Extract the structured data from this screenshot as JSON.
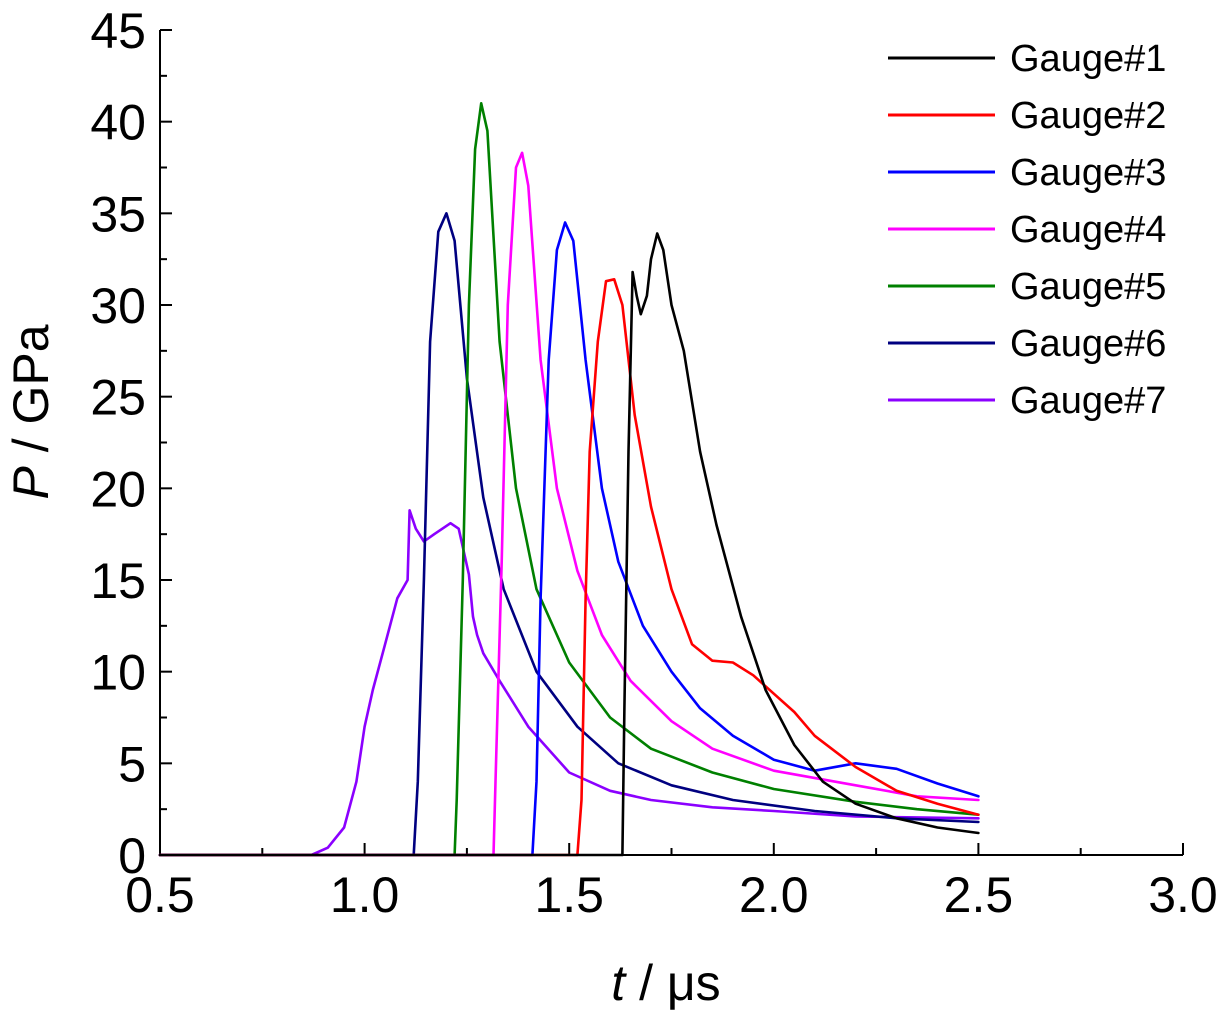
{
  "chart_data": {
    "type": "line",
    "title": "",
    "xlabel_var": "t",
    "xlabel_unit": " / μs",
    "ylabel_var": "P",
    "ylabel_unit": " / GPa",
    "xlim": [
      0.5,
      3.0
    ],
    "ylim": [
      0,
      45
    ],
    "x_ticks": [
      0.5,
      1.0,
      1.5,
      2.0,
      2.5,
      3.0
    ],
    "x_tick_labels": [
      "0.5",
      "1.0",
      "1.5",
      "2.0",
      "2.5",
      "3.0"
    ],
    "y_ticks": [
      0,
      5,
      10,
      15,
      20,
      25,
      30,
      35,
      40,
      45
    ],
    "y_tick_labels": [
      "0",
      "5",
      "10",
      "15",
      "20",
      "25",
      "30",
      "35",
      "40",
      "45"
    ],
    "grid": false,
    "legend_position": "top-right",
    "series": [
      {
        "name": "Gauge#1",
        "color": "#000000",
        "points": [
          [
            0.5,
            0
          ],
          [
            1.63,
            0
          ],
          [
            1.635,
            8
          ],
          [
            1.645,
            22
          ],
          [
            1.655,
            31.8
          ],
          [
            1.665,
            30.5
          ],
          [
            1.675,
            29.5
          ],
          [
            1.69,
            30.5
          ],
          [
            1.7,
            32.5
          ],
          [
            1.715,
            33.9
          ],
          [
            1.73,
            33
          ],
          [
            1.75,
            30
          ],
          [
            1.78,
            27.5
          ],
          [
            1.82,
            22
          ],
          [
            1.86,
            18
          ],
          [
            1.92,
            13
          ],
          [
            1.98,
            9
          ],
          [
            2.05,
            6
          ],
          [
            2.12,
            4
          ],
          [
            2.2,
            2.8
          ],
          [
            2.3,
            2.0
          ],
          [
            2.4,
            1.5
          ],
          [
            2.5,
            1.2
          ]
        ]
      },
      {
        "name": "Gauge#2",
        "color": "#ff0000",
        "points": [
          [
            0.5,
            0
          ],
          [
            1.52,
            0
          ],
          [
            1.53,
            3
          ],
          [
            1.54,
            14
          ],
          [
            1.55,
            22
          ],
          [
            1.57,
            28
          ],
          [
            1.59,
            31.3
          ],
          [
            1.61,
            31.4
          ],
          [
            1.63,
            30
          ],
          [
            1.66,
            24
          ],
          [
            1.7,
            19
          ],
          [
            1.75,
            14.5
          ],
          [
            1.8,
            11.5
          ],
          [
            1.85,
            10.6
          ],
          [
            1.9,
            10.5
          ],
          [
            1.95,
            9.8
          ],
          [
            2.0,
            8.8
          ],
          [
            2.05,
            7.8
          ],
          [
            2.1,
            6.5
          ],
          [
            2.2,
            4.8
          ],
          [
            2.3,
            3.5
          ],
          [
            2.4,
            2.8
          ],
          [
            2.5,
            2.2
          ]
        ]
      },
      {
        "name": "Gauge#3",
        "color": "#0000ff",
        "points": [
          [
            0.5,
            0
          ],
          [
            1.41,
            0
          ],
          [
            1.42,
            4
          ],
          [
            1.43,
            14
          ],
          [
            1.45,
            27
          ],
          [
            1.47,
            33
          ],
          [
            1.49,
            34.5
          ],
          [
            1.51,
            33.5
          ],
          [
            1.54,
            27
          ],
          [
            1.58,
            20
          ],
          [
            1.62,
            16
          ],
          [
            1.68,
            12.5
          ],
          [
            1.75,
            10
          ],
          [
            1.82,
            8
          ],
          [
            1.9,
            6.5
          ],
          [
            2.0,
            5.2
          ],
          [
            2.1,
            4.6
          ],
          [
            2.2,
            5.0
          ],
          [
            2.3,
            4.7
          ],
          [
            2.4,
            3.9
          ],
          [
            2.5,
            3.2
          ]
        ]
      },
      {
        "name": "Gauge#4",
        "color": "#ff00ff",
        "points": [
          [
            0.5,
            0
          ],
          [
            1.315,
            0
          ],
          [
            1.32,
            4
          ],
          [
            1.335,
            16
          ],
          [
            1.35,
            30
          ],
          [
            1.37,
            37.5
          ],
          [
            1.385,
            38.3
          ],
          [
            1.4,
            36.5
          ],
          [
            1.43,
            27
          ],
          [
            1.47,
            20
          ],
          [
            1.52,
            15.5
          ],
          [
            1.58,
            12
          ],
          [
            1.65,
            9.5
          ],
          [
            1.75,
            7.3
          ],
          [
            1.85,
            5.8
          ],
          [
            2.0,
            4.6
          ],
          [
            2.2,
            3.8
          ],
          [
            2.35,
            3.2
          ],
          [
            2.5,
            3.0
          ]
        ]
      },
      {
        "name": "Gauge#5",
        "color": "#008000",
        "points": [
          [
            0.5,
            0
          ],
          [
            1.22,
            0
          ],
          [
            1.225,
            3
          ],
          [
            1.24,
            15
          ],
          [
            1.255,
            30
          ],
          [
            1.27,
            38.5
          ],
          [
            1.285,
            41.0
          ],
          [
            1.3,
            39.5
          ],
          [
            1.33,
            28
          ],
          [
            1.37,
            20
          ],
          [
            1.42,
            14.5
          ],
          [
            1.5,
            10.5
          ],
          [
            1.6,
            7.5
          ],
          [
            1.7,
            5.8
          ],
          [
            1.85,
            4.5
          ],
          [
            2.0,
            3.6
          ],
          [
            2.2,
            2.9
          ],
          [
            2.35,
            2.5
          ],
          [
            2.5,
            2.2
          ]
        ]
      },
      {
        "name": "Gauge#6",
        "color": "#000080",
        "points": [
          [
            0.5,
            0
          ],
          [
            1.12,
            0
          ],
          [
            1.13,
            4
          ],
          [
            1.145,
            15
          ],
          [
            1.16,
            28
          ],
          [
            1.18,
            34
          ],
          [
            1.2,
            35
          ],
          [
            1.22,
            33.5
          ],
          [
            1.25,
            26
          ],
          [
            1.29,
            19.5
          ],
          [
            1.34,
            14.5
          ],
          [
            1.42,
            10
          ],
          [
            1.52,
            7
          ],
          [
            1.62,
            5
          ],
          [
            1.75,
            3.8
          ],
          [
            1.9,
            3.0
          ],
          [
            2.1,
            2.4
          ],
          [
            2.3,
            2.0
          ],
          [
            2.5,
            1.8
          ]
        ]
      },
      {
        "name": "Gauge#7",
        "color": "#8b00ff",
        "points": [
          [
            0.5,
            0
          ],
          [
            0.87,
            0
          ],
          [
            0.91,
            0.4
          ],
          [
            0.95,
            1.5
          ],
          [
            0.98,
            4
          ],
          [
            1.0,
            7
          ],
          [
            1.02,
            9
          ],
          [
            1.05,
            11.5
          ],
          [
            1.08,
            14
          ],
          [
            1.105,
            15
          ],
          [
            1.11,
            18.8
          ],
          [
            1.125,
            17.8
          ],
          [
            1.145,
            17.1
          ],
          [
            1.17,
            17.5
          ],
          [
            1.21,
            18.1
          ],
          [
            1.23,
            17.8
          ],
          [
            1.255,
            15.3
          ],
          [
            1.265,
            13
          ],
          [
            1.275,
            12
          ],
          [
            1.29,
            11
          ],
          [
            1.33,
            9.5
          ],
          [
            1.4,
            7
          ],
          [
            1.5,
            4.5
          ],
          [
            1.6,
            3.5
          ],
          [
            1.7,
            3.0
          ],
          [
            1.85,
            2.6
          ],
          [
            2.0,
            2.4
          ],
          [
            2.2,
            2.1
          ],
          [
            2.5,
            2.0
          ]
        ]
      }
    ]
  }
}
